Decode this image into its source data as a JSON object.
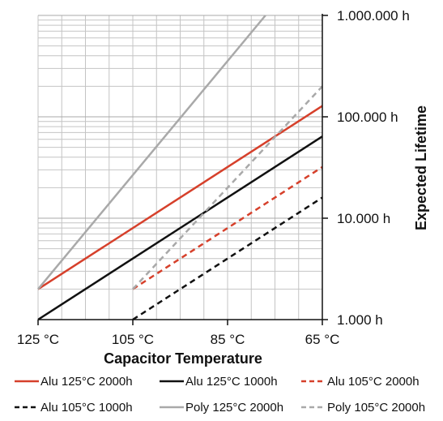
{
  "chart_data": {
    "type": "line",
    "title": "",
    "xlabel": "Capacitor Temperature",
    "ylabel": "Expected Lifetime",
    "x_axis": {
      "min": 65,
      "max": 125,
      "reversed": true,
      "ticks": [
        125,
        105,
        85,
        65
      ],
      "tick_labels": [
        "125 °C",
        "105 °C",
        "85 °C",
        "65 °C"
      ]
    },
    "y_axis": {
      "scale": "log",
      "min": 1000,
      "max": 1000000,
      "position": "right",
      "ticks": [
        1000,
        10000,
        100000,
        1000000
      ],
      "tick_labels": [
        "1.000 h",
        "10.000 h",
        "100.000 h",
        "1.000.000 h"
      ]
    },
    "grid": true,
    "legend_position": "bottom",
    "series": [
      {
        "name": "Alu 125°C 2000h",
        "color": "#d6402b",
        "dash": "solid",
        "x": [
          125,
          65
        ],
        "y": [
          2000,
          128000
        ]
      },
      {
        "name": "Alu 125°C 1000h",
        "color": "#111111",
        "dash": "solid",
        "x": [
          125,
          65
        ],
        "y": [
          1000,
          64000
        ]
      },
      {
        "name": "Alu 105°C 2000h",
        "color": "#d6402b",
        "dash": "dashed",
        "x": [
          105,
          65
        ],
        "y": [
          2000,
          32000
        ]
      },
      {
        "name": "Alu 105°C 1000h",
        "color": "#111111",
        "dash": "dashed",
        "x": [
          105,
          65
        ],
        "y": [
          1000,
          16000
        ]
      },
      {
        "name": "Poly 125°C 2000h",
        "color": "#a9a9a9",
        "dash": "solid",
        "x": [
          125,
          77
        ],
        "y": [
          2000,
          1000000
        ]
      },
      {
        "name": "Poly 105°C 2000h",
        "color": "#a9a9a9",
        "dash": "dashed",
        "x": [
          105,
          65
        ],
        "y": [
          2000,
          200000
        ]
      }
    ]
  }
}
